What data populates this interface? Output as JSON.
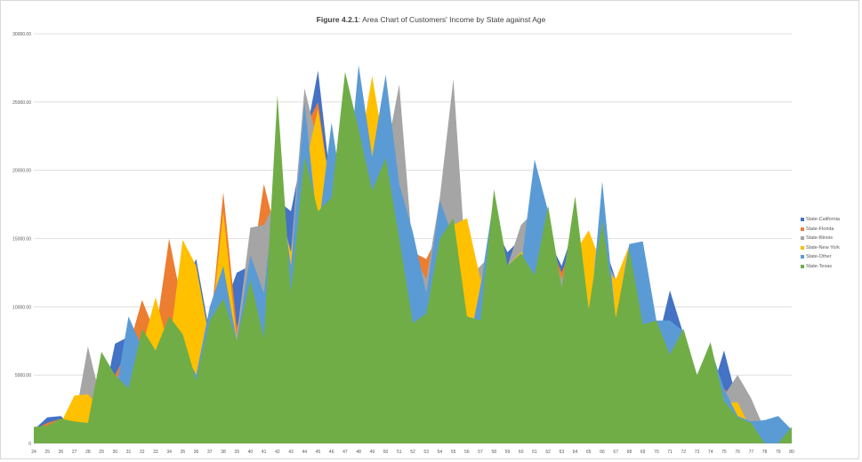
{
  "chart_data": {
    "type": "area",
    "title_bold": "Figure 4.2.1",
    "title_rest": ": Area Chart of Customers' Income by State against Age",
    "ylim": [
      0,
      30000
    ],
    "yticks": [
      0,
      5000,
      10000,
      15000,
      20000,
      25000,
      30000
    ],
    "ytick_labels": [
      "0",
      "5000.00",
      "10000.00",
      "15000.00",
      "20000.00",
      "25000.00",
      "30000.00"
    ],
    "grid": true,
    "legend_position": "right",
    "x": [
      24,
      25,
      26,
      27,
      28,
      29,
      30,
      31,
      32,
      33,
      34,
      35,
      36,
      37,
      38,
      39,
      40,
      41,
      42,
      43,
      44,
      45,
      46,
      47,
      48,
      49,
      50,
      51,
      52,
      53,
      54,
      55,
      56,
      57,
      58,
      59,
      60,
      61,
      62,
      63,
      64,
      65,
      66,
      67,
      68,
      69,
      70,
      71,
      72,
      73,
      74,
      75,
      76,
      77,
      78,
      79,
      80
    ],
    "series": [
      {
        "name": "State-California",
        "color": "#4472c4",
        "values": [
          1000,
          1900,
          2000,
          1000,
          4800,
          2500,
          7300,
          7800,
          8800,
          6000,
          7500,
          11500,
          13500,
          8000,
          9800,
          12500,
          13000,
          12000,
          17800,
          17000,
          22000,
          27300,
          18500,
          17500,
          23500,
          24000,
          24000,
          17000,
          14000,
          12000,
          16000,
          16000,
          12000,
          11000,
          16000,
          14000,
          15000,
          14000,
          15000,
          13000,
          16000,
          11000,
          15000,
          12000,
          9000,
          8000,
          7000,
          11200,
          8000,
          5000,
          3500,
          6800,
          3000,
          2500,
          1000,
          500,
          1000
        ]
      },
      {
        "name": "State-Florida",
        "color": "#ed7d31",
        "values": [
          1000,
          1500,
          1800,
          1200,
          4500,
          2000,
          5000,
          7000,
          10500,
          8000,
          15000,
          10000,
          9000,
          8000,
          18400,
          8500,
          12000,
          19000,
          15000,
          14000,
          23000,
          25000,
          18000,
          17000,
          22000,
          24000,
          23000,
          16500,
          14000,
          13500,
          15500,
          16000,
          11000,
          12000,
          14000,
          13000,
          15500,
          14000,
          15000,
          12500,
          15000,
          12000,
          14000,
          11000,
          10000,
          9200,
          7500,
          8000,
          8000,
          5000,
          3500,
          4000,
          3000,
          2500,
          1000,
          500,
          1000
        ]
      },
      {
        "name": "State-Illinois",
        "color": "#a5a5a5",
        "values": [
          1000,
          1200,
          1500,
          1500,
          7100,
          3000,
          4500,
          6500,
          7500,
          7000,
          8000,
          9000,
          8500,
          7500,
          10000,
          8000,
          15800,
          16000,
          18000,
          14000,
          26000,
          22000,
          20000,
          18000,
          22000,
          21000,
          21000,
          26300,
          14000,
          12000,
          18000,
          26700,
          12000,
          13000,
          14000,
          13000,
          16000,
          17000,
          15000,
          12000,
          15000,
          13000,
          14000,
          12000,
          9000,
          8000,
          7000,
          7000,
          8000,
          5000,
          3000,
          3500,
          5000,
          3300,
          1000,
          500,
          1000
        ]
      },
      {
        "name": "State-New York",
        "color": "#ffc000",
        "values": [
          1000,
          1200,
          1500,
          3500,
          3600,
          2500,
          4000,
          5000,
          7000,
          10700,
          7000,
          14900,
          13000,
          7500,
          17000,
          7500,
          10000,
          9000,
          17000,
          14000,
          20000,
          24500,
          18000,
          17000,
          21000,
          26900,
          21000,
          16000,
          12000,
          11000,
          14000,
          16000,
          16500,
          12000,
          16000,
          13000,
          14000,
          14000,
          15000,
          11000,
          14000,
          15600,
          13000,
          12000,
          14500,
          9000,
          7500,
          8500,
          8000,
          5000,
          3000,
          3000,
          3000,
          1000,
          800,
          500,
          1000
        ]
      },
      {
        "name": "State-Other",
        "color": "#5b9bd5",
        "values": [
          1000,
          1200,
          1500,
          1500,
          1000,
          6000,
          3500,
          9300,
          7000,
          6500,
          8500,
          7000,
          5000,
          10000,
          13000,
          7500,
          13800,
          11000,
          20000,
          13000,
          25000,
          15500,
          23500,
          17000,
          27700,
          21000,
          27000,
          19000,
          15500,
          11000,
          17800,
          15000,
          6500,
          11500,
          18000,
          13000,
          13000,
          20800,
          17000,
          11000,
          18000,
          8000,
          19200,
          9000,
          14600,
          14800,
          9000,
          9000,
          8200,
          5000,
          7000,
          4000,
          2000,
          1600,
          1700,
          2000,
          1000
        ]
      },
      {
        "name": "State-Texas",
        "color": "#70ad47",
        "values": [
          1200,
          1300,
          1800,
          1600,
          1500,
          6700,
          5000,
          4000,
          8400,
          6800,
          9300,
          8000,
          4600,
          9000,
          10600,
          7500,
          12000,
          7700,
          25500,
          11000,
          21000,
          17000,
          18000,
          27200,
          23000,
          18500,
          20900,
          15000,
          8800,
          9500,
          15000,
          16500,
          9300,
          9000,
          18600,
          13000,
          13900,
          12300,
          17400,
          11400,
          18100,
          9800,
          16300,
          9200,
          14200,
          8700,
          9000,
          6500,
          8400,
          5000,
          7400,
          3100,
          1900,
          1500,
          0,
          0,
          1200
        ]
      }
    ]
  }
}
